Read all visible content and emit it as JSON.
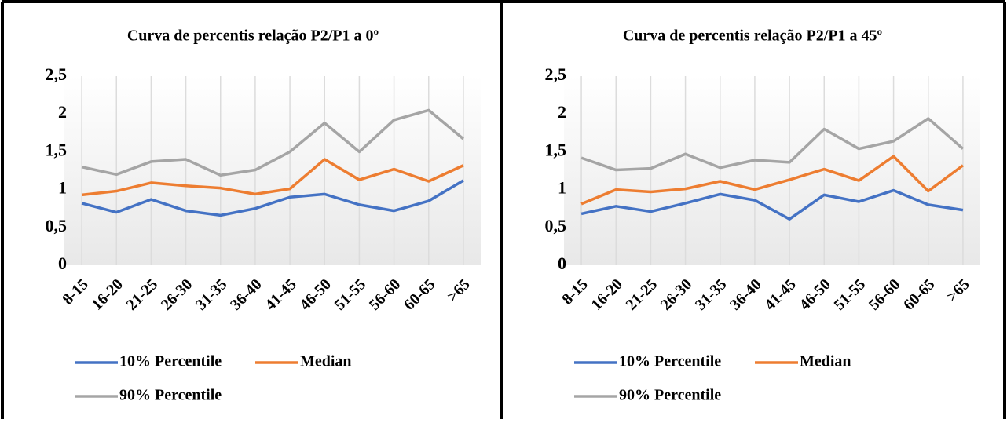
{
  "chart_data": [
    {
      "type": "line",
      "title": "Curva de percentis relação P2/P1 a 0º",
      "categories": [
        "8-15",
        "16-20",
        "21-25",
        "26-30",
        "31-35",
        "36-40",
        "41-45",
        "46-50",
        "51-55",
        "56-60",
        "60-65",
        ">65"
      ],
      "series": [
        {
          "name": "10% Percentile",
          "color": "#4472c4",
          "values": [
            0.82,
            0.7,
            0.87,
            0.72,
            0.66,
            0.75,
            0.9,
            0.94,
            0.8,
            0.72,
            0.85,
            1.12
          ]
        },
        {
          "name": "Median",
          "color": "#ed7d31",
          "values": [
            0.93,
            0.98,
            1.09,
            1.05,
            1.02,
            0.94,
            1.01,
            1.4,
            1.13,
            1.27,
            1.11,
            1.32
          ]
        },
        {
          "name": "90% Percentile",
          "color": "#a5a5a5",
          "values": [
            1.3,
            1.2,
            1.37,
            1.4,
            1.19,
            1.26,
            1.5,
            1.88,
            1.5,
            1.92,
            2.05,
            1.67
          ]
        }
      ],
      "ylim": [
        0,
        2.5
      ],
      "yticks": [
        0,
        {
          "value": 0.5,
          "label": "0,5"
        },
        1,
        {
          "value": 1.5,
          "label": "1,5"
        },
        2,
        {
          "value": 2.5,
          "label": "2,5"
        }
      ],
      "legend": "bottom"
    },
    {
      "type": "line",
      "title": "Curva de percentis relação P2/P1 a 45º",
      "categories": [
        "8-15",
        "16-20",
        "21-25",
        "26-30",
        "31-35",
        "36-40",
        "41-45",
        "46-50",
        "51-55",
        "56-60",
        "60-65",
        ">65"
      ],
      "series": [
        {
          "name": "10% Percentile",
          "color": "#4472c4",
          "values": [
            0.68,
            0.78,
            0.71,
            0.82,
            0.94,
            0.86,
            0.61,
            0.93,
            0.84,
            0.99,
            0.8,
            0.73
          ]
        },
        {
          "name": "Median",
          "color": "#ed7d31",
          "values": [
            0.81,
            1.0,
            0.97,
            1.01,
            1.11,
            1.0,
            1.13,
            1.27,
            1.12,
            1.44,
            0.98,
            1.32
          ]
        },
        {
          "name": "90% Percentile",
          "color": "#a5a5a5",
          "values": [
            1.42,
            1.26,
            1.28,
            1.47,
            1.29,
            1.39,
            1.36,
            1.8,
            1.54,
            1.64,
            1.94,
            1.54
          ]
        }
      ],
      "ylim": [
        0,
        2.5
      ],
      "yticks": [
        0,
        {
          "value": 0.5,
          "label": "0,5"
        },
        1,
        {
          "value": 1.5,
          "label": "1,5"
        },
        2,
        {
          "value": 2.5,
          "label": "2,5"
        }
      ],
      "legend": "bottom"
    }
  ]
}
